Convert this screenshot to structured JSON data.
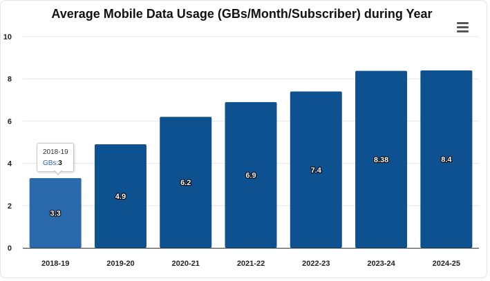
{
  "chart_data": {
    "type": "bar",
    "title": "Average Mobile Data Usage (GBs/Month/Subscriber) during Year",
    "categories": [
      "2018-19",
      "2019-20",
      "2020-21",
      "2021-22",
      "2022-23",
      "2023-24",
      "2024-25"
    ],
    "series": [
      {
        "name": "GBs",
        "values": [
          3.3,
          4.9,
          6.2,
          6.9,
          7.4,
          8.38,
          8.4
        ]
      }
    ],
    "data_labels": [
      "3.3",
      "4.9",
      "6.2",
      "6.9",
      "7.4",
      "8.38",
      "8.4"
    ],
    "ylim": [
      0,
      10
    ],
    "yticks": [
      0,
      2,
      4,
      6,
      8,
      10
    ],
    "grid": true,
    "legend": "none",
    "colors": {
      "bar": "#0d5191",
      "bar_hover": "#2a69ac",
      "grid": "#e6e6e6"
    },
    "highlighted_index": 0
  },
  "tooltip": {
    "category": "2018-19",
    "series": "GBs",
    "separator": ":",
    "value": "3"
  },
  "menu": {
    "icon": "hamburger-menu-icon"
  }
}
